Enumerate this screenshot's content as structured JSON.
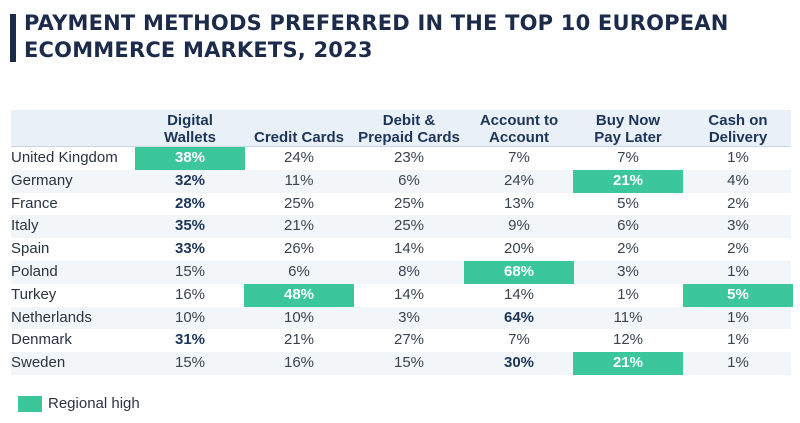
{
  "chart_data": {
    "type": "table",
    "title": [
      "PAYMENT METHODS PREFERRED IN THE TOP 10 EUROPEAN",
      "ECOMMERCE MARKETS, 2023"
    ],
    "columns": [
      "Digital\nWallets",
      "Credit Cards",
      "Debit &\nPrepaid Cards",
      "Account to\nAccount",
      "Buy Now\nPay Later",
      "Cash on\nDelivery"
    ],
    "rows": [
      {
        "country": "United Kingdom",
        "values": [
          "38%",
          "24%",
          "23%",
          "7%",
          "7%",
          "1%"
        ],
        "high": 0
      },
      {
        "country": "Germany",
        "values": [
          "32%",
          "11%",
          "6%",
          "24%",
          "21%",
          "4%"
        ],
        "high": 4
      },
      {
        "country": "France",
        "values": [
          "28%",
          "25%",
          "25%",
          "13%",
          "5%",
          "2%"
        ],
        "high": -1
      },
      {
        "country": "Italy",
        "values": [
          "35%",
          "21%",
          "25%",
          "9%",
          "6%",
          "3%"
        ],
        "high": -1
      },
      {
        "country": "Spain",
        "values": [
          "33%",
          "26%",
          "14%",
          "20%",
          "2%",
          "2%"
        ],
        "high": -1
      },
      {
        "country": "Poland",
        "values": [
          "15%",
          "6%",
          "8%",
          "68%",
          "3%",
          "1%"
        ],
        "high": 3
      },
      {
        "country": "Turkey",
        "values": [
          "16%",
          "48%",
          "14%",
          "14%",
          "1%",
          "5%"
        ],
        "high": 1
      },
      {
        "country": "Netherlands",
        "values": [
          "10%",
          "10%",
          "3%",
          "64%",
          "11%",
          "1%"
        ],
        "high": -1
      },
      {
        "country": "Denmark",
        "values": [
          "31%",
          "21%",
          "27%",
          "7%",
          "12%",
          "1%"
        ],
        "high": -1
      },
      {
        "country": "Sweden",
        "values": [
          "15%",
          "16%",
          "15%",
          "30%",
          "21%",
          "1%"
        ],
        "high": 4
      }
    ],
    "cash_high_rows": [
      6
    ],
    "bold_cells": [
      [
        0,
        0
      ],
      [
        1,
        0
      ],
      [
        2,
        0
      ],
      [
        3,
        0
      ],
      [
        4,
        0
      ],
      [
        7,
        3
      ],
      [
        8,
        0
      ],
      [
        9,
        3
      ]
    ],
    "legend": "Regional high",
    "highlight_color": "#3cc79a"
  }
}
